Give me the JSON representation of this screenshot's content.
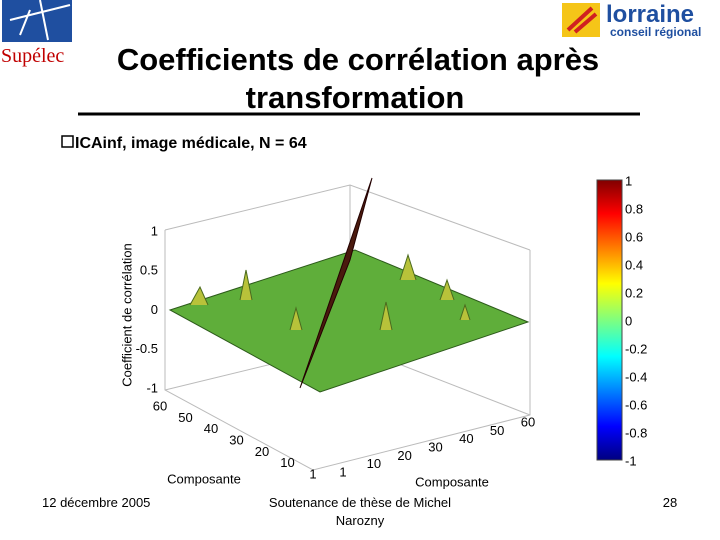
{
  "header": {
    "logo_left": "Supélec",
    "logo_right_main": "lorraine",
    "logo_right_sub": "conseil régional",
    "title_line1": "Coefficients de corrélation après",
    "title_line2": "transformation"
  },
  "bullet": "ICAinf, image médicale, N = 64",
  "figure": {
    "z_label": "Coefficient de corrélation",
    "left_axis_label": "Composante",
    "right_axis_label": "Composante",
    "z_ticks": [
      "1",
      "0.5",
      "0",
      "-0.5",
      "-1"
    ],
    "left_ticks": [
      "60",
      "50",
      "40",
      "30",
      "20",
      "10",
      "1"
    ],
    "right_ticks": [
      "1",
      "10",
      "20",
      "30",
      "40",
      "50",
      "60"
    ],
    "colorbar_ticks": [
      "1",
      "0.8",
      "0.6",
      "0.4",
      "0.2",
      "0",
      "-0.2",
      "-0.4",
      "-0.6",
      "-0.8",
      "-1"
    ]
  },
  "footer": {
    "date": "12 décembre 2005",
    "center_line1": "Soutenance de thèse de Michel",
    "center_line2": "Narozny",
    "page": "28"
  }
}
